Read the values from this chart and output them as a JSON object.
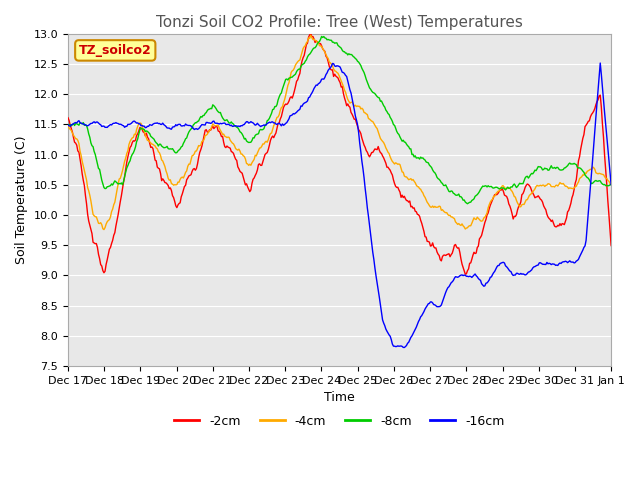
{
  "title": "Tonzi Soil CO2 Profile: Tree (West) Temperatures",
  "xlabel": "Time",
  "ylabel": "Soil Temperature (C)",
  "ylim": [
    7.5,
    13.0
  ],
  "yticks": [
    7.5,
    8.0,
    8.5,
    9.0,
    9.5,
    10.0,
    10.5,
    11.0,
    11.5,
    12.0,
    12.5,
    13.0
  ],
  "legend_label": "TZ_soilco2",
  "series_labels": [
    "-2cm",
    "-4cm",
    "-8cm",
    "-16cm"
  ],
  "series_colors": [
    "#ff0000",
    "#ffaa00",
    "#00cc00",
    "#0000ff"
  ],
  "background_color": "#ffffff",
  "plot_bg_color": "#e8e8e8",
  "grid_color": "#ffffff",
  "title_color": "#555555",
  "xtick_labels": [
    "Dec 17",
    "Dec 18",
    "Dec 19",
    "Dec 20",
    "Dec 21",
    "Dec 22",
    "Dec 23",
    "Dec 24",
    "Dec 25",
    "Dec 26",
    "Dec 27",
    "Dec 28",
    "Dec 29",
    "Dec 30",
    "Dec 31",
    "Jan 1"
  ],
  "xtick_positions": [
    0,
    1,
    2,
    3,
    4,
    5,
    6,
    7,
    8,
    9,
    10,
    11,
    12,
    13,
    14,
    15
  ]
}
